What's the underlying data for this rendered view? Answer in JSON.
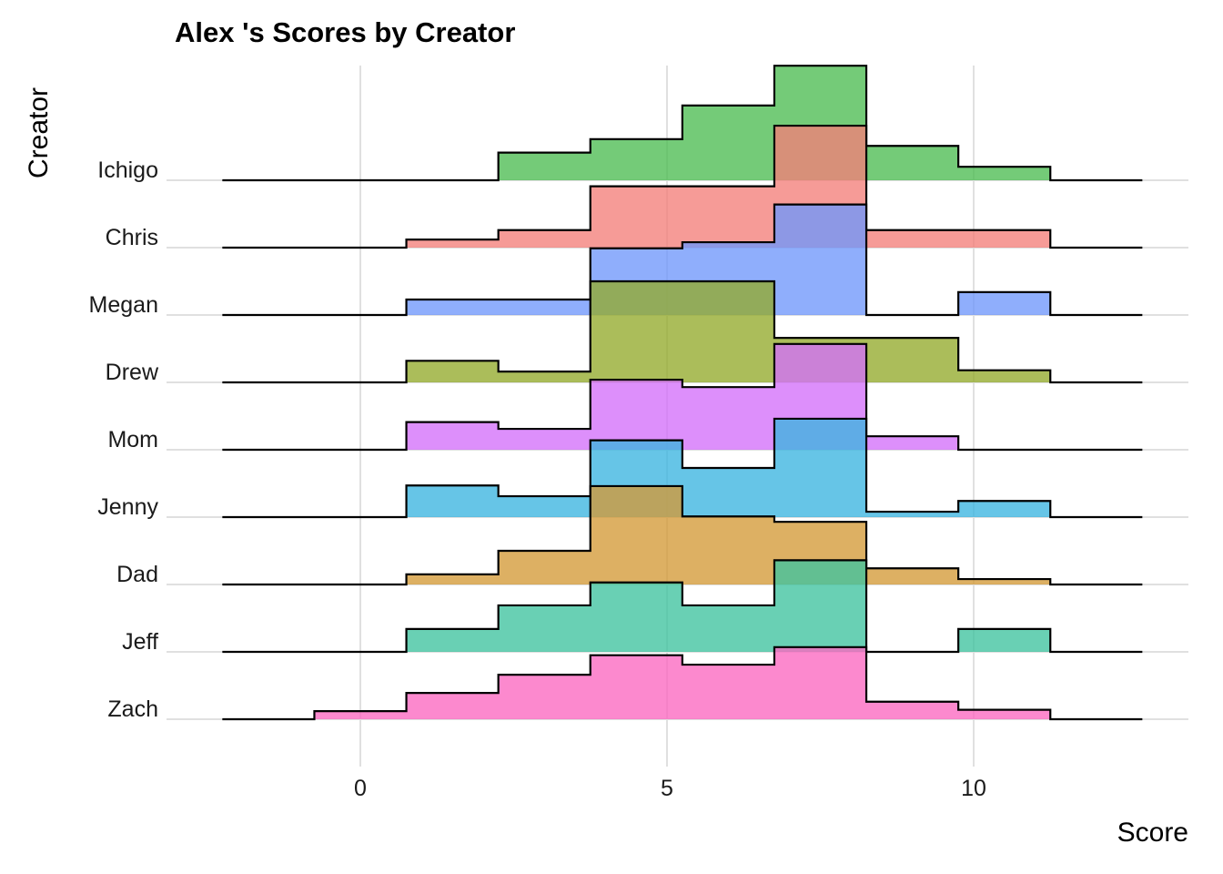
{
  "chart_data": {
    "type": "area",
    "subtype": "ridgeline-histogram",
    "title": "Alex 's Scores by Creator",
    "xlabel": "Score",
    "ylabel": "Creator",
    "x_ticks": [
      0,
      5,
      10
    ],
    "xlim": [
      -2.25,
      12.75
    ],
    "bin_edges": [
      -2.25,
      -0.75,
      0.75,
      2.25,
      3.75,
      5.25,
      6.75,
      8.25,
      9.75,
      11.25,
      12.75
    ],
    "bin_centers": [
      -1.5,
      0,
      1.5,
      3,
      4.5,
      6,
      7.5,
      9,
      10.5,
      12
    ],
    "grid": true,
    "legend": "none",
    "height_unit": "relative ridge height (1.0 = one row spacing)",
    "series": [
      {
        "name": "Ichigo",
        "color": "#4dbd52",
        "values": [
          0,
          0,
          0,
          0.41,
          0.61,
          1.11,
          1.7,
          0.51,
          0.2,
          0
        ]
      },
      {
        "name": "Chris",
        "color": "#f47f7a",
        "values": [
          0,
          0,
          0.12,
          0.26,
          0.91,
          0.91,
          1.81,
          0.26,
          0.26,
          0
        ]
      },
      {
        "name": "Megan",
        "color": "#6f97fb",
        "values": [
          0,
          0,
          0.23,
          0.23,
          0.99,
          1.08,
          1.64,
          0,
          0.34,
          0
        ]
      },
      {
        "name": "Drew",
        "color": "#93ab2b",
        "values": [
          0,
          0,
          0.32,
          0.16,
          1.5,
          1.5,
          0.66,
          0.66,
          0.18,
          0
        ]
      },
      {
        "name": "Mom",
        "color": "#d46ffa",
        "values": [
          0,
          0,
          0.41,
          0.31,
          1.04,
          0.93,
          1.57,
          0.2,
          0,
          0
        ]
      },
      {
        "name": "Jenny",
        "color": "#3bb5e0",
        "values": [
          0,
          0,
          0.47,
          0.31,
          1.14,
          0.73,
          1.46,
          0.08,
          0.24,
          0
        ]
      },
      {
        "name": "Dad",
        "color": "#d39a37",
        "values": [
          0,
          0,
          0.15,
          0.5,
          1.46,
          1.01,
          0.93,
          0.24,
          0.08,
          0
        ]
      },
      {
        "name": "Jeff",
        "color": "#3fc39f",
        "values": [
          0,
          0,
          0.34,
          0.69,
          1.03,
          0.69,
          1.36,
          0,
          0.34,
          0
        ]
      },
      {
        "name": "Zach",
        "color": "#fb68c0",
        "values": [
          0,
          0.12,
          0.39,
          0.66,
          0.95,
          0.81,
          1.07,
          0.26,
          0.14,
          0
        ]
      }
    ]
  },
  "labels": {
    "title": "Alex 's Scores by Creator",
    "xlabel": "Score",
    "ylabel": "Creator",
    "ticks": [
      "0",
      "5",
      "10"
    ],
    "categories": [
      "Ichigo",
      "Chris",
      "Megan",
      "Drew",
      "Mom",
      "Jenny",
      "Dad",
      "Jeff",
      "Zach"
    ]
  }
}
